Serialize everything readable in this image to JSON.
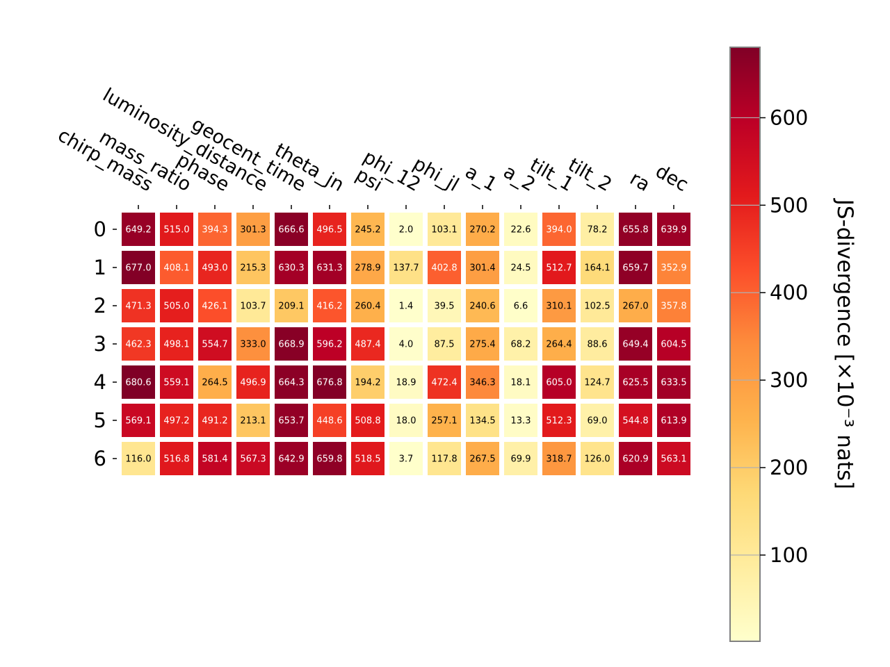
{
  "chart_data": {
    "type": "heatmap",
    "rows": [
      "0",
      "1",
      "2",
      "3",
      "4",
      "5",
      "6"
    ],
    "columns": [
      "chirp_mass",
      "mass_ratio",
      "phase",
      "luminosity_distance",
      "geocent_time",
      "theta_jn",
      "psi",
      "phi_12",
      "phi_jl",
      "a_1",
      "a_2",
      "tilt_1",
      "tilt_2",
      "ra",
      "dec"
    ],
    "values": [
      [
        649.2,
        515.0,
        394.3,
        301.3,
        666.6,
        496.5,
        245.2,
        2.0,
        103.1,
        270.2,
        22.6,
        394.0,
        78.2,
        655.8,
        639.9
      ],
      [
        677.0,
        408.1,
        493.0,
        215.3,
        630.3,
        631.3,
        278.9,
        137.7,
        402.8,
        301.4,
        24.5,
        512.7,
        164.1,
        659.7,
        352.9
      ],
      [
        471.3,
        505.0,
        426.1,
        103.7,
        209.1,
        416.2,
        260.4,
        1.4,
        39.5,
        240.6,
        6.6,
        310.1,
        102.5,
        267.0,
        357.8
      ],
      [
        462.3,
        498.1,
        554.7,
        333.0,
        668.9,
        596.2,
        487.4,
        4.0,
        87.5,
        275.4,
        68.2,
        264.4,
        88.6,
        649.4,
        604.5
      ],
      [
        680.6,
        559.1,
        264.5,
        496.9,
        664.3,
        676.8,
        194.2,
        18.9,
        472.4,
        346.3,
        18.1,
        605.0,
        124.7,
        625.5,
        633.5
      ],
      [
        569.1,
        497.2,
        491.2,
        213.1,
        653.7,
        448.6,
        508.8,
        18.0,
        257.1,
        134.5,
        13.3,
        512.3,
        69.0,
        544.8,
        613.9
      ],
      [
        116.0,
        516.8,
        581.4,
        567.3,
        642.9,
        659.8,
        518.5,
        3.7,
        117.8,
        267.5,
        69.9,
        318.7,
        126.0,
        620.9,
        563.1
      ]
    ],
    "colorbar": {
      "colormap": "YlOrRd",
      "range": [
        1.4,
        680.6
      ],
      "ticks": [
        100,
        200,
        300,
        400,
        500,
        600
      ],
      "tick_labels": [
        "100",
        "200",
        "300",
        "400",
        "500",
        "600"
      ],
      "label": "JS-divergence [×10⁻³ nats]",
      "grid": true
    },
    "cell_text_colors": {
      "light": "#ffffff",
      "dark": "#000000"
    },
    "threshold_white_text": 350
  }
}
